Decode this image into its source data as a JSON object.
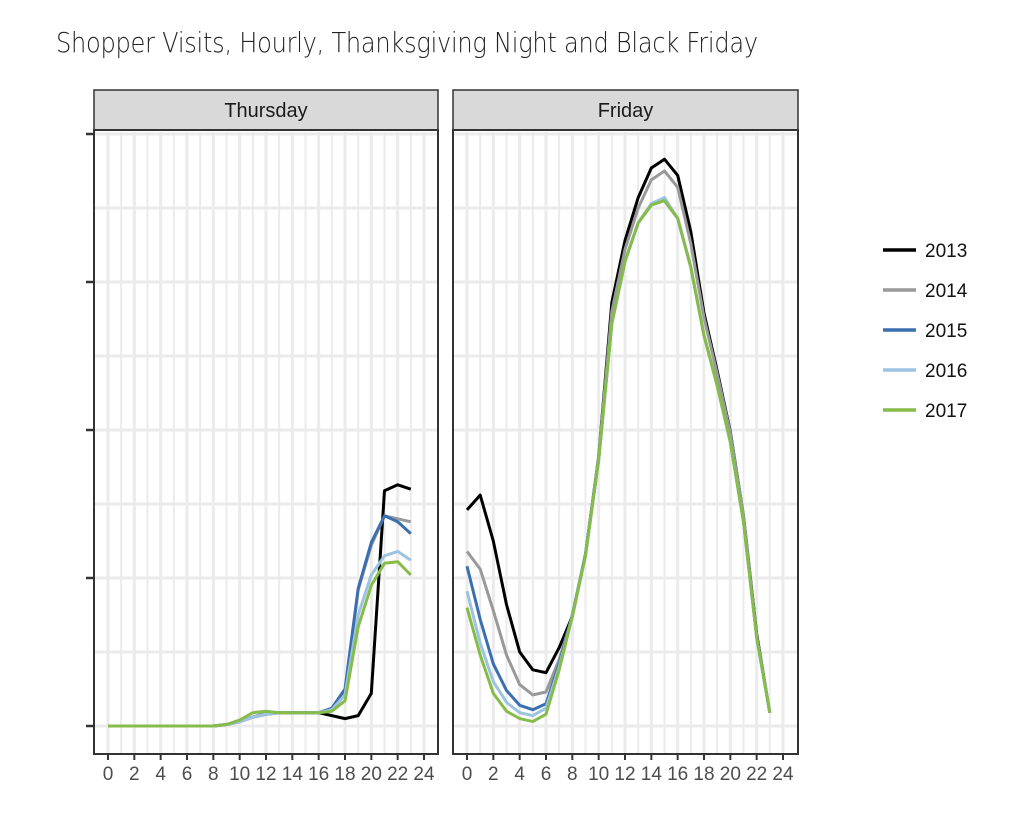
{
  "title": "Shopper Visits, Hourly, Thanksgiving Night and Black Friday",
  "panels": [
    {
      "label": "Thursday"
    },
    {
      "label": "Friday"
    }
  ],
  "legend": {
    "items": [
      {
        "label": "2013",
        "color": "#000000"
      },
      {
        "label": "2014",
        "color": "#999999"
      },
      {
        "label": "2015",
        "color": "#3b6fb0"
      },
      {
        "label": "2016",
        "color": "#9dc3e2"
      },
      {
        "label": "2017",
        "color": "#86bc4a"
      }
    ]
  },
  "x_ticks": [
    0,
    2,
    4,
    6,
    8,
    10,
    12,
    14,
    16,
    18,
    20,
    22,
    24
  ],
  "chart_data": {
    "type": "line",
    "title": "Shopper Visits, Hourly, Thanksgiving Night and Black Friday",
    "xlabel": "",
    "ylabel": "",
    "facets": [
      "Thursday",
      "Friday"
    ],
    "x": [
      0,
      1,
      2,
      3,
      4,
      5,
      6,
      7,
      8,
      9,
      10,
      11,
      12,
      13,
      14,
      15,
      16,
      17,
      18,
      19,
      20,
      21,
      22,
      23
    ],
    "xlim": [
      0,
      24
    ],
    "ylim": [
      -0.2,
      4.0
    ],
    "y_ticks_labeled": false,
    "y_units_note": "relative units (y-axis unlabeled); 1 unit = one major gridline interval",
    "grid": true,
    "legend_position": "right",
    "series": [
      {
        "name": "2013",
        "color": "#000000",
        "Thursday": [
          0,
          0,
          0,
          0,
          0,
          0,
          0,
          0,
          0,
          0.01,
          0.03,
          0.06,
          0.08,
          0.09,
          0.09,
          0.09,
          0.09,
          0.07,
          0.05,
          0.07,
          0.22,
          1.59,
          1.63,
          1.6
        ],
        "Friday": [
          1.46,
          1.56,
          1.25,
          0.82,
          0.5,
          0.38,
          0.36,
          0.53,
          0.74,
          1.16,
          1.82,
          2.86,
          3.28,
          3.57,
          3.77,
          3.83,
          3.72,
          3.34,
          2.79,
          2.4,
          1.99,
          1.42,
          0.62,
          0.09
        ]
      },
      {
        "name": "2014",
        "color": "#999999",
        "Thursday": [
          0,
          0,
          0,
          0,
          0,
          0,
          0,
          0,
          0,
          0.01,
          0.03,
          0.06,
          0.09,
          0.09,
          0.09,
          0.09,
          0.09,
          0.11,
          0.23,
          0.92,
          1.22,
          1.42,
          1.4,
          1.38
        ],
        "Friday": [
          1.18,
          1.06,
          0.78,
          0.48,
          0.28,
          0.21,
          0.23,
          0.45,
          0.74,
          1.16,
          1.82,
          2.8,
          3.22,
          3.5,
          3.69,
          3.75,
          3.64,
          3.26,
          2.76,
          2.38,
          1.98,
          1.42,
          0.6,
          0.09
        ]
      },
      {
        "name": "2015",
        "color": "#3b6fb0",
        "Thursday": [
          0,
          0,
          0,
          0,
          0,
          0,
          0,
          0,
          0,
          0.01,
          0.03,
          0.06,
          0.08,
          0.09,
          0.09,
          0.09,
          0.09,
          0.12,
          0.25,
          0.93,
          1.24,
          1.42,
          1.38,
          1.3
        ],
        "Friday": [
          1.08,
          0.72,
          0.42,
          0.24,
          0.14,
          0.11,
          0.15,
          0.42,
          0.75,
          1.16,
          1.8,
          2.72,
          3.14,
          3.4,
          3.52,
          3.55,
          3.43,
          3.1,
          2.64,
          2.3,
          1.92,
          1.38,
          0.6,
          0.09
        ]
      },
      {
        "name": "2016",
        "color": "#9dc3e2",
        "Thursday": [
          0,
          0,
          0,
          0,
          0,
          0,
          0,
          0,
          0,
          0.01,
          0.03,
          0.06,
          0.08,
          0.09,
          0.09,
          0.09,
          0.09,
          0.11,
          0.21,
          0.75,
          1.02,
          1.15,
          1.18,
          1.12
        ],
        "Friday": [
          0.91,
          0.56,
          0.3,
          0.16,
          0.09,
          0.07,
          0.12,
          0.4,
          0.74,
          1.15,
          1.8,
          2.72,
          3.14,
          3.4,
          3.53,
          3.57,
          3.43,
          3.1,
          2.64,
          2.3,
          1.92,
          1.38,
          0.6,
          0.09
        ]
      },
      {
        "name": "2017",
        "color": "#86bc4a",
        "Thursday": [
          0,
          0,
          0,
          0,
          0,
          0,
          0,
          0,
          0,
          0.01,
          0.04,
          0.09,
          0.1,
          0.09,
          0.09,
          0.09,
          0.09,
          0.1,
          0.17,
          0.67,
          0.95,
          1.1,
          1.11,
          1.02
        ],
        "Friday": [
          0.8,
          0.48,
          0.22,
          0.1,
          0.05,
          0.03,
          0.08,
          0.38,
          0.74,
          1.15,
          1.8,
          2.72,
          3.14,
          3.4,
          3.52,
          3.55,
          3.43,
          3.1,
          2.64,
          2.3,
          1.92,
          1.38,
          0.6,
          0.09
        ]
      }
    ]
  }
}
